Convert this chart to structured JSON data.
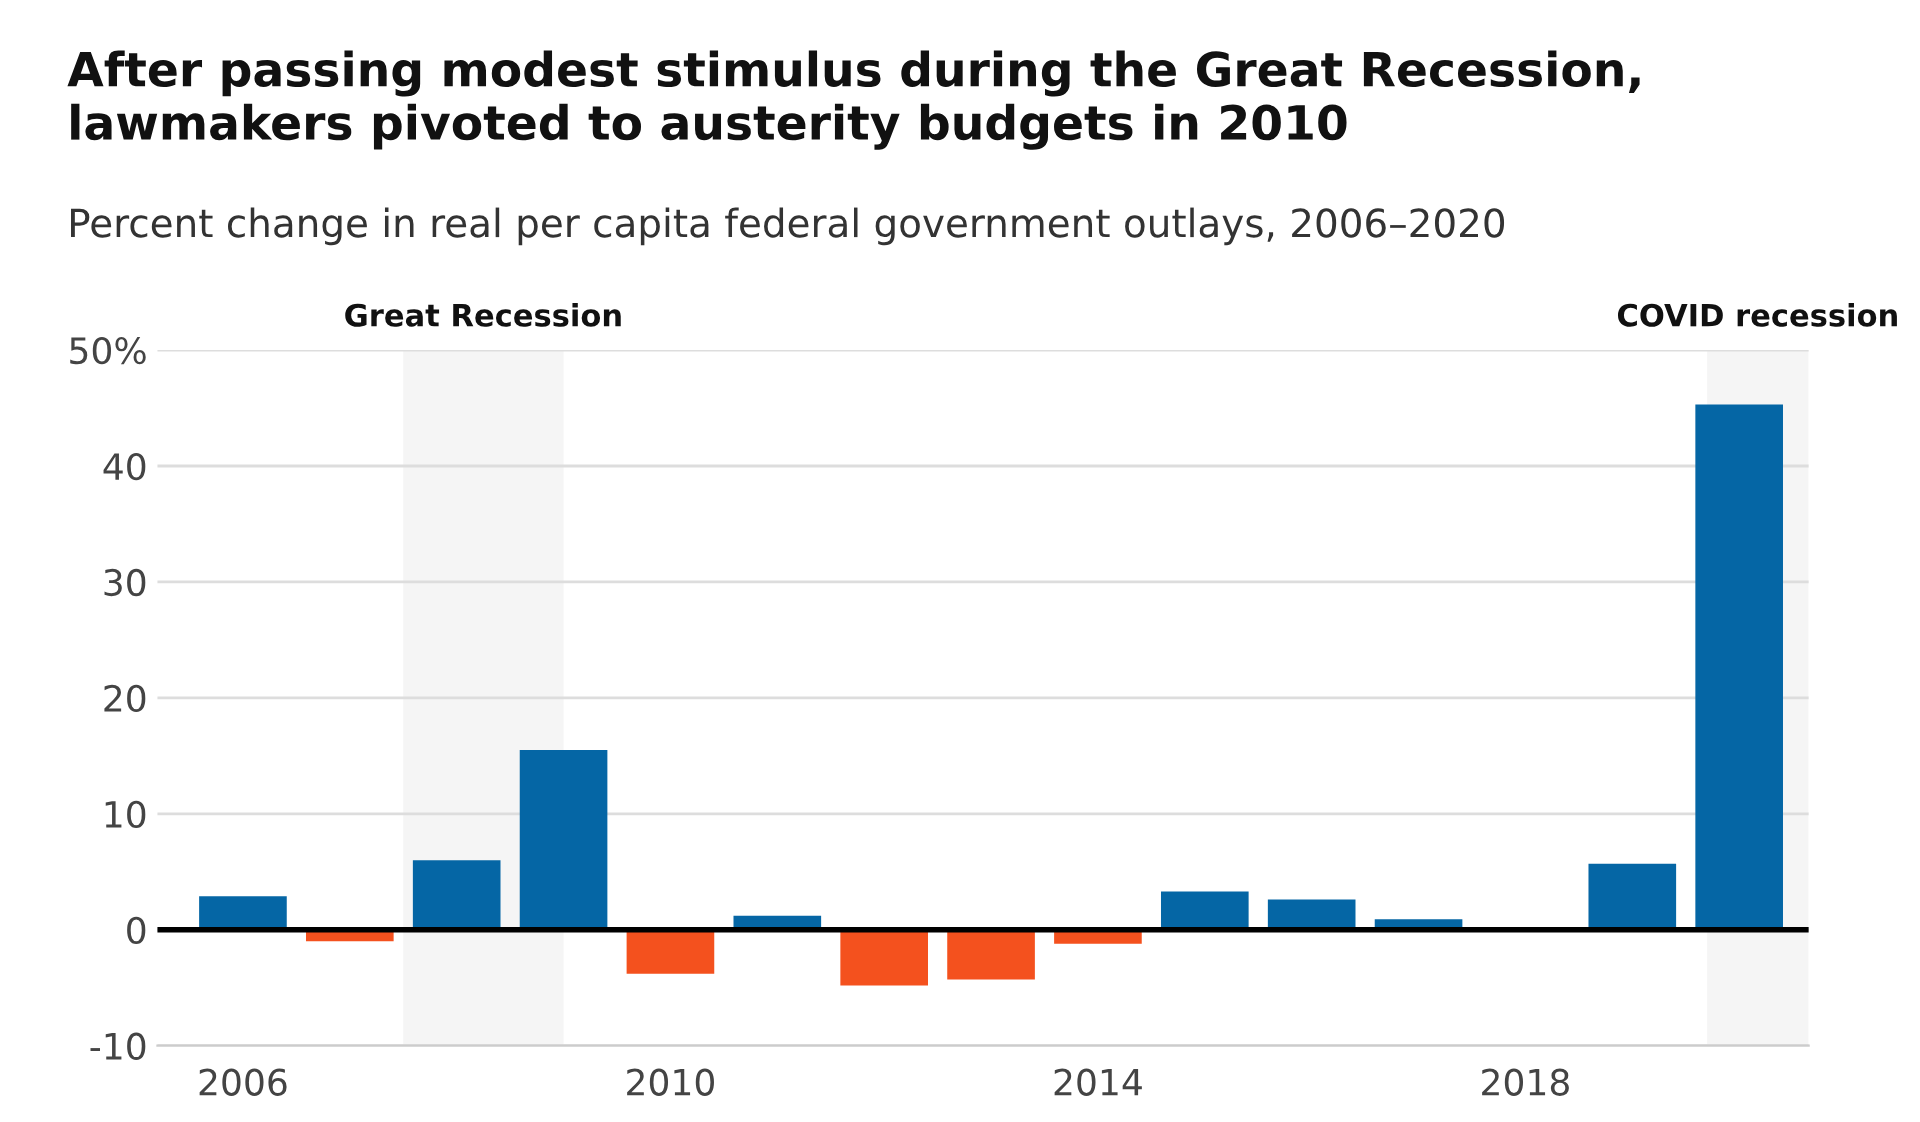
{
  "chart_data": {
    "type": "bar",
    "title": "After passing modest stimulus during the Great Recession, lawmakers pivoted to austerity budgets in 2010",
    "subtitle": "Percent change in real per capita federal government outlays, 2006–2020",
    "x": [
      2006,
      2007,
      2008,
      2009,
      2010,
      2011,
      2012,
      2013,
      2014,
      2015,
      2016,
      2017,
      2018,
      2019,
      2020
    ],
    "values": [
      2.9,
      -1.0,
      6.0,
      15.5,
      -3.8,
      1.2,
      -4.8,
      -4.3,
      -1.2,
      3.3,
      2.6,
      0.9,
      0.2,
      5.7,
      45.3
    ],
    "colors": [
      "#0566a5",
      "#f4511e",
      "#0566a5",
      "#0566a5",
      "#f4511e",
      "#0566a5",
      "#f4511e",
      "#f4511e",
      "#f4511e",
      "#0566a5",
      "#0566a5",
      "#0566a5",
      "#0566a5",
      "#0566a5",
      "#0566a5"
    ],
    "xlim": [
      2005.2,
      2020.65
    ],
    "xticks": [
      2006,
      2010,
      2014,
      2018
    ],
    "ylim": [
      -10,
      50
    ],
    "yticks": [
      -10,
      0,
      10,
      20,
      30,
      40,
      {
        "value": 50,
        "label": "50%"
      }
    ],
    "grid": "y",
    "bands": [
      {
        "axis": "x",
        "from": 2007.5,
        "to": 2009.0,
        "label": "Great Recession",
        "color": "#f5f5f5"
      },
      {
        "axis": "x",
        "from": 2019.7,
        "to": 2020.65,
        "label": "COVID recession",
        "color": "#f5f5f5"
      }
    ],
    "ref_lines": [
      {
        "axis": "y",
        "value": 0,
        "color": "#000000"
      }
    ]
  }
}
